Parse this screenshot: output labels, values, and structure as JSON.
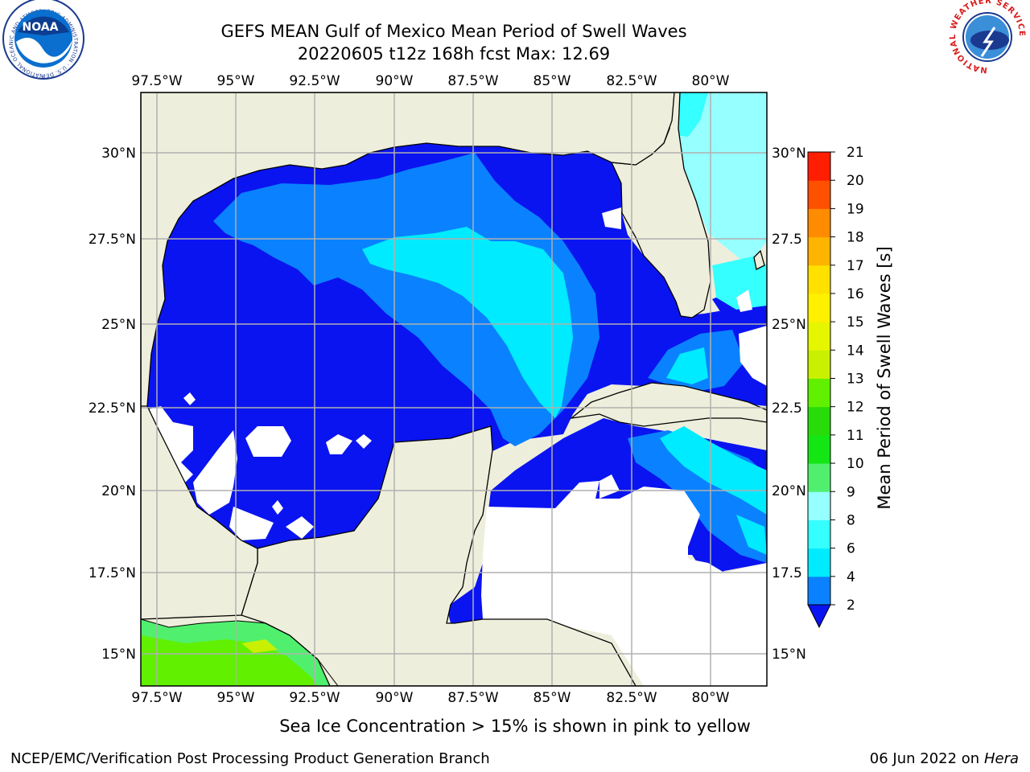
{
  "title": {
    "line1": "GEFS MEAN Gulf of Mexico Mean Period of Swell Waves",
    "line2": "20220605 t12z 168h fcst   Max: 12.69"
  },
  "map": {
    "lon_ticks": [
      "97.5°W",
      "95°W",
      "92.5°W",
      "90°W",
      "87.5°W",
      "85°W",
      "82.5°W",
      "80°W"
    ],
    "lat_ticks_left": [
      "30°N",
      "27.5°N",
      "25°N",
      "22.5°N",
      "20°N",
      "17.5°N",
      "15°N"
    ],
    "lat_ticks_right": [
      "30°N",
      "27.5",
      "25°N",
      "22.5",
      "20°N",
      "17.5",
      "15°N"
    ],
    "extent": {
      "lon": [
        -98,
        -79
      ],
      "lat": [
        14,
        32
      ]
    },
    "colors": {
      "land": "#eeeedc",
      "no_data": "#ffffff",
      "grid": "#b0b0b0",
      "coast": "#000000"
    }
  },
  "colorbar": {
    "label": "Mean Period of Swell Waves [s]",
    "ticks": [
      "2",
      "4",
      "6",
      "8",
      "9",
      "10",
      "11",
      "12",
      "13",
      "14",
      "15",
      "16",
      "17",
      "18",
      "19",
      "20",
      "21"
    ],
    "levels": [
      2,
      4,
      6,
      8,
      9,
      10,
      11,
      12,
      13,
      14,
      15,
      16,
      17,
      18,
      19,
      20,
      21
    ],
    "colors": [
      "#0a14f0",
      "#0a82ff",
      "#00ebff",
      "#35ffff",
      "#96ffff",
      "#50f06e",
      "#14e614",
      "#28dc0a",
      "#60f000",
      "#c8f000",
      "#e6f500",
      "#fff000",
      "#ffe100",
      "#ffb400",
      "#ff8c00",
      "#ff5000",
      "#ff1e00",
      "#fa0000"
    ],
    "extend": "min"
  },
  "note": "Sea Ice Concentration > 15% is shown in pink to yellow",
  "credit": "NCEP/EMC/Verification Post Processing Product Generation Branch",
  "datestamp": {
    "date": "06 Jun 2022 on",
    "machine": "Hera"
  },
  "logos": {
    "left": {
      "name": "noaa-logo",
      "text": "NOAA",
      "ring": "NATIONAL OCEANIC AND ATMOSPHERIC ADMINISTRATION · U.S. DEPARTMENT OF COMMERCE"
    },
    "right": {
      "name": "nws-logo",
      "ring": "NATIONAL WEATHER SERVICE"
    }
  }
}
